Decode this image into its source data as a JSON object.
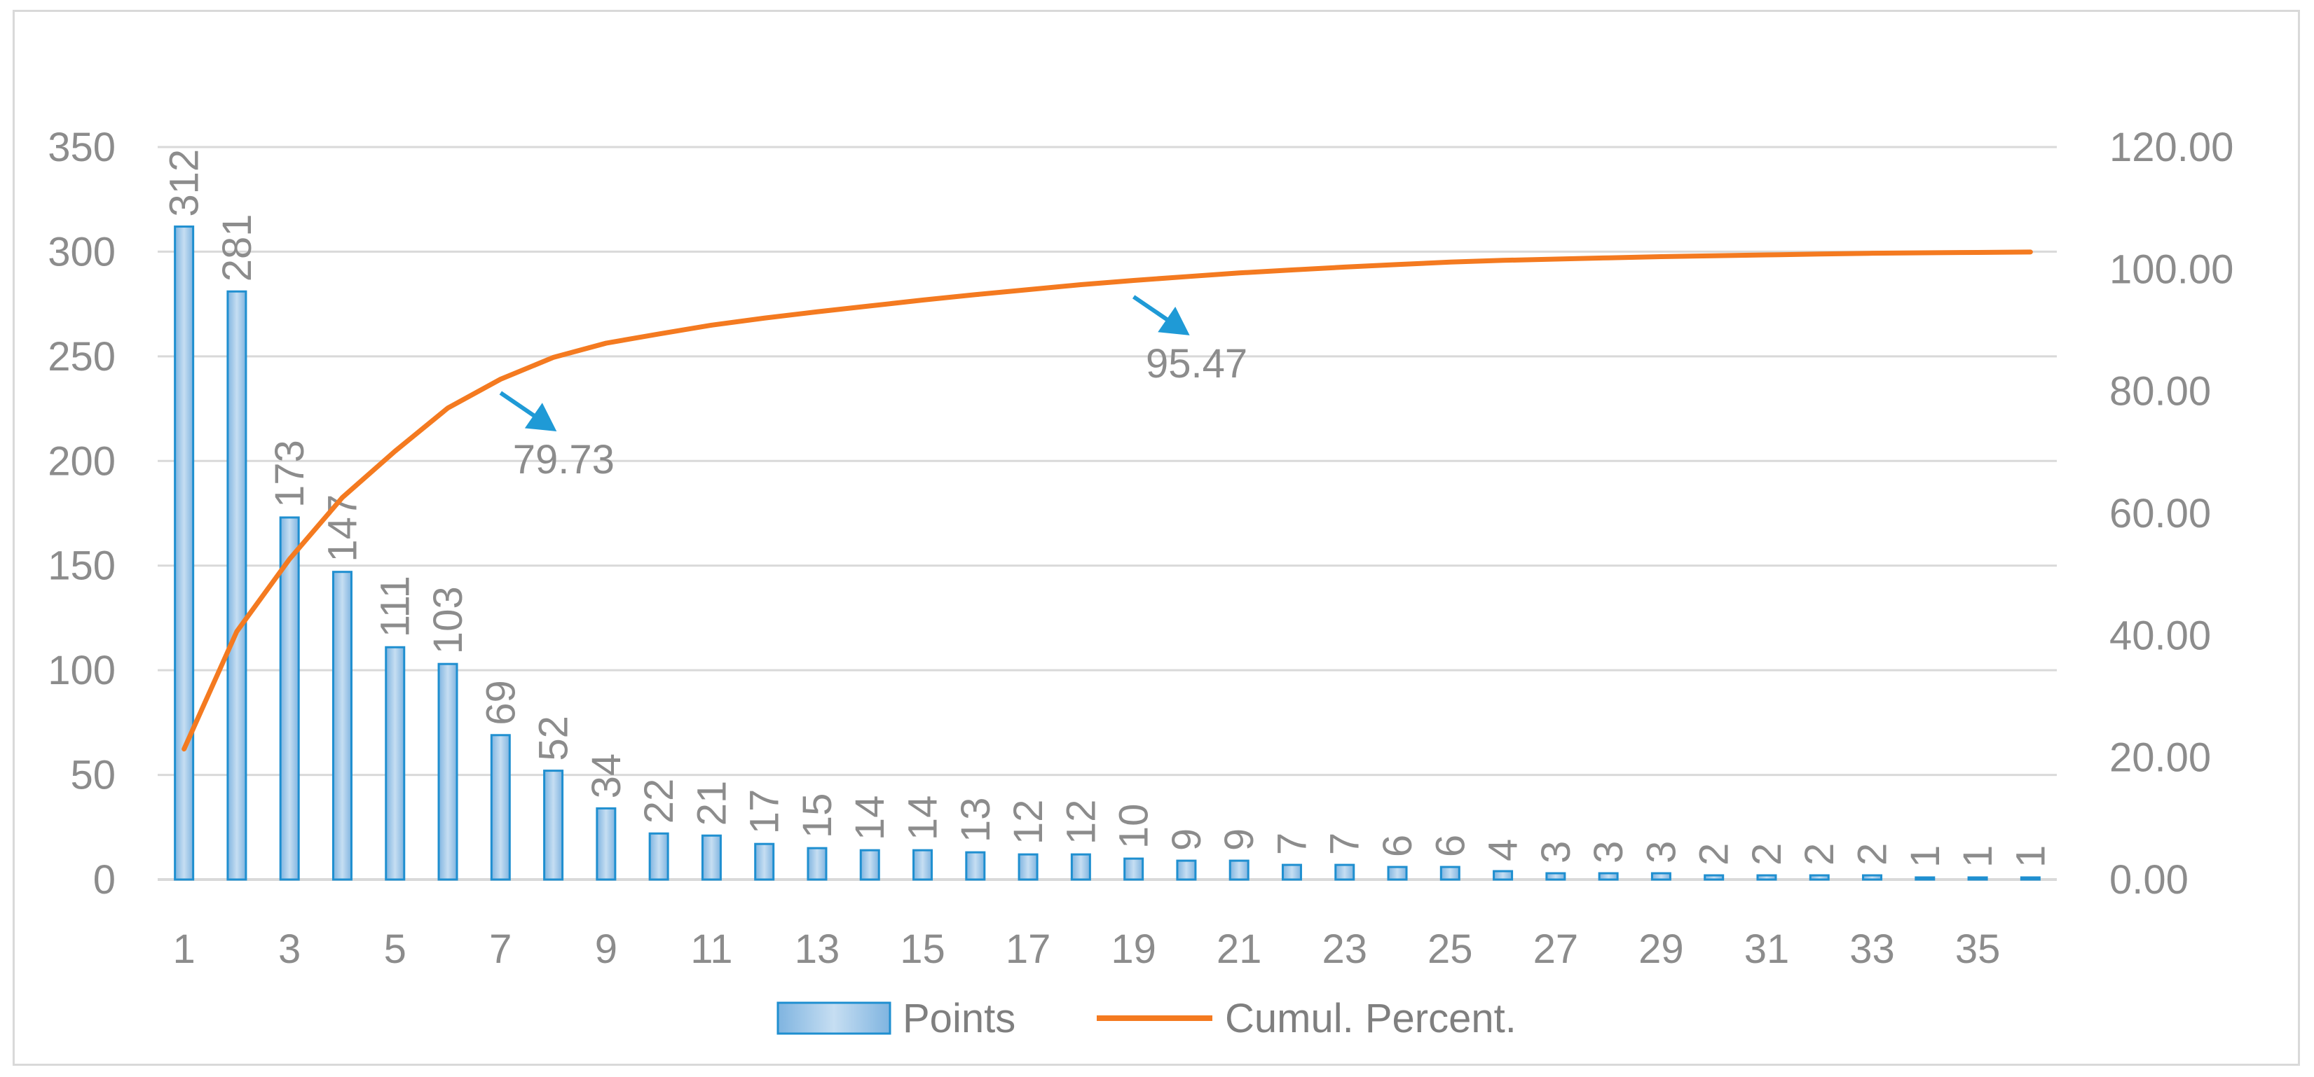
{
  "chart_data": {
    "type": "bar",
    "x": [
      1,
      2,
      3,
      4,
      5,
      6,
      7,
      8,
      9,
      10,
      11,
      12,
      13,
      14,
      15,
      16,
      17,
      18,
      19,
      20,
      21,
      22,
      23,
      24,
      25,
      26,
      27,
      28,
      29,
      30,
      31,
      32,
      33,
      34,
      35,
      36
    ],
    "x_tick_labels": [
      "1",
      "3",
      "5",
      "7",
      "9",
      "11",
      "13",
      "15",
      "17",
      "19",
      "21",
      "23",
      "25",
      "27",
      "29",
      "31",
      "33",
      "35"
    ],
    "series": [
      {
        "name": "Points",
        "type": "bar",
        "axis": "left",
        "values": [
          312,
          281,
          173,
          147,
          111,
          103,
          69,
          52,
          34,
          22,
          21,
          17,
          15,
          14,
          14,
          13,
          12,
          12,
          10,
          9,
          9,
          7,
          7,
          6,
          6,
          4,
          3,
          3,
          3,
          2,
          2,
          2,
          2,
          1,
          1,
          1
        ],
        "data_labels": [
          "312",
          "281",
          "173",
          "147",
          "111",
          "103",
          "69",
          "52",
          "34",
          "22",
          "21",
          "17",
          "15",
          "14",
          "14",
          "13",
          "12",
          "12",
          "10",
          "9",
          "9",
          "7",
          "7",
          "6",
          "6",
          "4",
          "3",
          "3",
          "3",
          "2",
          "2",
          "2",
          "2",
          "1",
          "1",
          "1"
        ]
      },
      {
        "name": "Cumul. Percent.",
        "type": "line",
        "axis": "right",
        "values": [
          21.38,
          40.64,
          52.5,
          62.58,
          70.18,
          77.24,
          81.97,
          85.54,
          87.87,
          89.38,
          90.82,
          91.98,
          93.01,
          93.97,
          94.93,
          95.82,
          96.64,
          97.46,
          98.15,
          98.77,
          99.38,
          99.86,
          100.34,
          100.75,
          101.16,
          101.44,
          101.64,
          101.85,
          102.05,
          102.19,
          102.33,
          102.47,
          102.6,
          102.67,
          102.74,
          102.81
        ]
      }
    ],
    "y_left": {
      "min": 0,
      "max": 350,
      "ticks": [
        "0",
        "50",
        "100",
        "150",
        "200",
        "250",
        "300",
        "350"
      ]
    },
    "y_right": {
      "min": 0,
      "max": 120,
      "ticks": [
        "0.00",
        "20.00",
        "40.00",
        "60.00",
        "80.00",
        "100.00",
        "120.00"
      ]
    },
    "annotations": [
      {
        "text": "79.73",
        "x": 7,
        "y": 79.73
      },
      {
        "text": "95.47",
        "x": 19,
        "y": 95.47
      }
    ],
    "legend": {
      "placement": "bottom",
      "entries": [
        "Points",
        "Cumul. Percent."
      ]
    },
    "grid": true,
    "colors": {
      "bar_fill": "#9dc3e6",
      "bar_stroke": "#1f8fd0",
      "line": "#f47a20",
      "grid": "#d9d9d9",
      "arrow": "#1f9ad6",
      "text": "#8c8c8c"
    }
  }
}
